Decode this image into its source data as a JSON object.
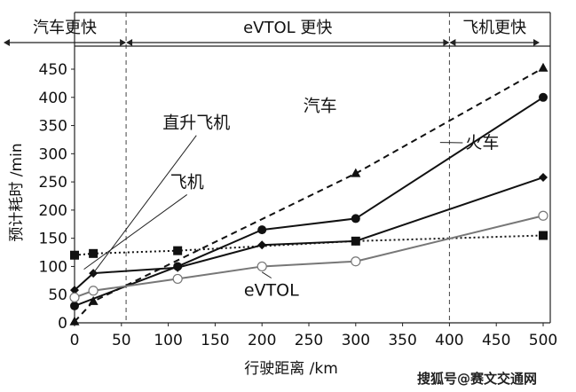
{
  "chart_data": {
    "type": "line",
    "xlabel": "行驶距离 /km",
    "ylabel": "预计耗时 /min",
    "xlim": [
      0,
      500
    ],
    "ylim": [
      0,
      450
    ],
    "xticks": [
      0,
      50,
      100,
      150,
      200,
      250,
      300,
      350,
      400,
      450,
      500
    ],
    "yticks": [
      0,
      50,
      100,
      150,
      200,
      250,
      300,
      350,
      400,
      450
    ],
    "regions": [
      {
        "label": "汽车更快",
        "x_range": [
          0,
          55
        ]
      },
      {
        "label": "eVTOL 更快",
        "x_range": [
          55,
          400
        ]
      },
      {
        "label": "飞机更快",
        "x_range": [
          400,
          500
        ]
      }
    ],
    "region_boundaries": [
      55,
      400
    ],
    "series": [
      {
        "name": "汽车",
        "marker": "triangle",
        "style": "dashed",
        "color": "#111111",
        "x": [
          0,
          20,
          300,
          500
        ],
        "y": [
          2,
          38,
          265,
          452
        ]
      },
      {
        "name": "火车",
        "marker": "circle",
        "style": "solid",
        "color": "#111111",
        "x": [
          0,
          110,
          200,
          300,
          500
        ],
        "y": [
          30,
          100,
          165,
          185,
          400
        ]
      },
      {
        "name": "直升飞机",
        "marker": "diamond",
        "style": "solid",
        "color": "#111111",
        "x": [
          0,
          20,
          110,
          200,
          300,
          500
        ],
        "y": [
          58,
          88,
          98,
          138,
          145,
          258
        ]
      },
      {
        "name": "飞机",
        "marker": "square",
        "style": "dotted",
        "color": "#111111",
        "x": [
          0,
          20,
          110,
          300,
          500
        ],
        "y": [
          120,
          123,
          128,
          145,
          155
        ]
      },
      {
        "name": "eVTOL",
        "marker": "open-circle",
        "style": "solid",
        "color": "#777777",
        "x": [
          0,
          20,
          110,
          200,
          300,
          500
        ],
        "y": [
          45,
          57,
          78,
          100,
          109,
          190
        ]
      }
    ],
    "annotations": [
      {
        "text": "直升飞机",
        "x": 130,
        "y": 345,
        "target_x": 20,
        "target_y": 88
      },
      {
        "text": "飞机",
        "x": 120,
        "y": 240,
        "target_x": 10,
        "target_y": 95
      },
      {
        "text": "汽车",
        "x": 262,
        "y": 375,
        "target_x": 0,
        "target_y": 0
      },
      {
        "text": "火车",
        "x": 435,
        "y": 310,
        "target_x": 390,
        "target_y": 320
      },
      {
        "text": "eVTOL",
        "x": 210,
        "y": 48,
        "target_x": 200,
        "target_y": 90
      }
    ]
  },
  "watermark": "搜狐号@赛文交通网"
}
